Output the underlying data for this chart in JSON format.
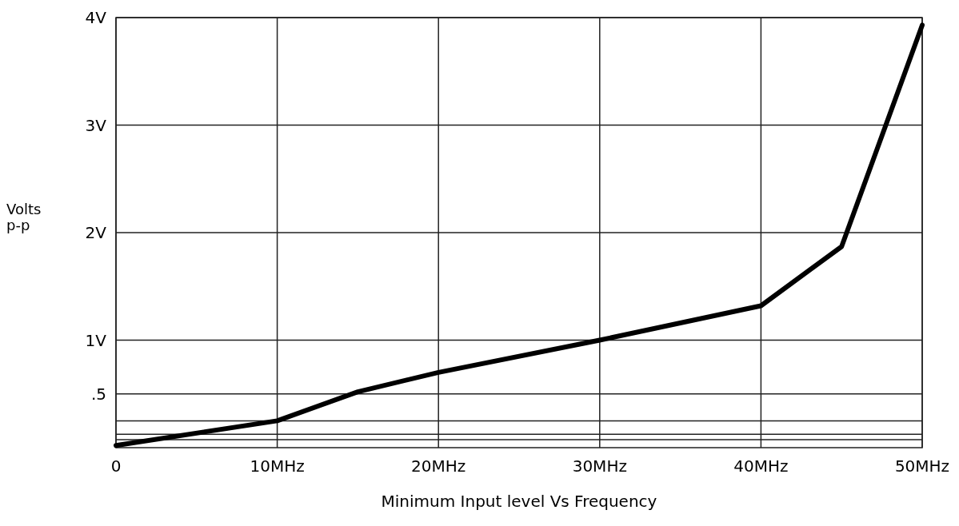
{
  "chart_data": {
    "type": "line",
    "xlabel": "Minimum Input level Vs Frequency",
    "ylabel": "Volts p-p",
    "x": [
      0,
      10,
      15,
      20,
      30,
      40,
      45,
      50
    ],
    "series": [
      {
        "color": "#000000",
        "values": [
          0.02,
          0.25,
          0.52,
          0.7,
          1.0,
          1.32,
          1.87,
          3.93
        ]
      }
    ],
    "xlim": [
      0,
      50
    ],
    "xticks": [
      {
        "value": 0,
        "label": "0"
      },
      {
        "value": 10,
        "label": "10MHz"
      },
      {
        "value": 20,
        "label": "20MHz"
      },
      {
        "value": 30,
        "label": "30MHz"
      },
      {
        "value": 40,
        "label": "40MHz"
      },
      {
        "value": 50,
        "label": "50MHz"
      }
    ],
    "ylim": [
      0,
      4
    ],
    "yticks": [
      {
        "value": 0.075,
        "label": null
      },
      {
        "value": 0.125,
        "label": null
      },
      {
        "value": 0.25,
        "label": null
      },
      {
        "value": 0.5,
        "label": ".5"
      },
      {
        "value": 1,
        "label": "1V"
      },
      {
        "value": 2,
        "label": "2V"
      },
      {
        "value": 3,
        "label": "3V"
      },
      {
        "value": 4,
        "label": "4V"
      }
    ],
    "grid": true,
    "marker": "none",
    "line_style": "solid"
  }
}
